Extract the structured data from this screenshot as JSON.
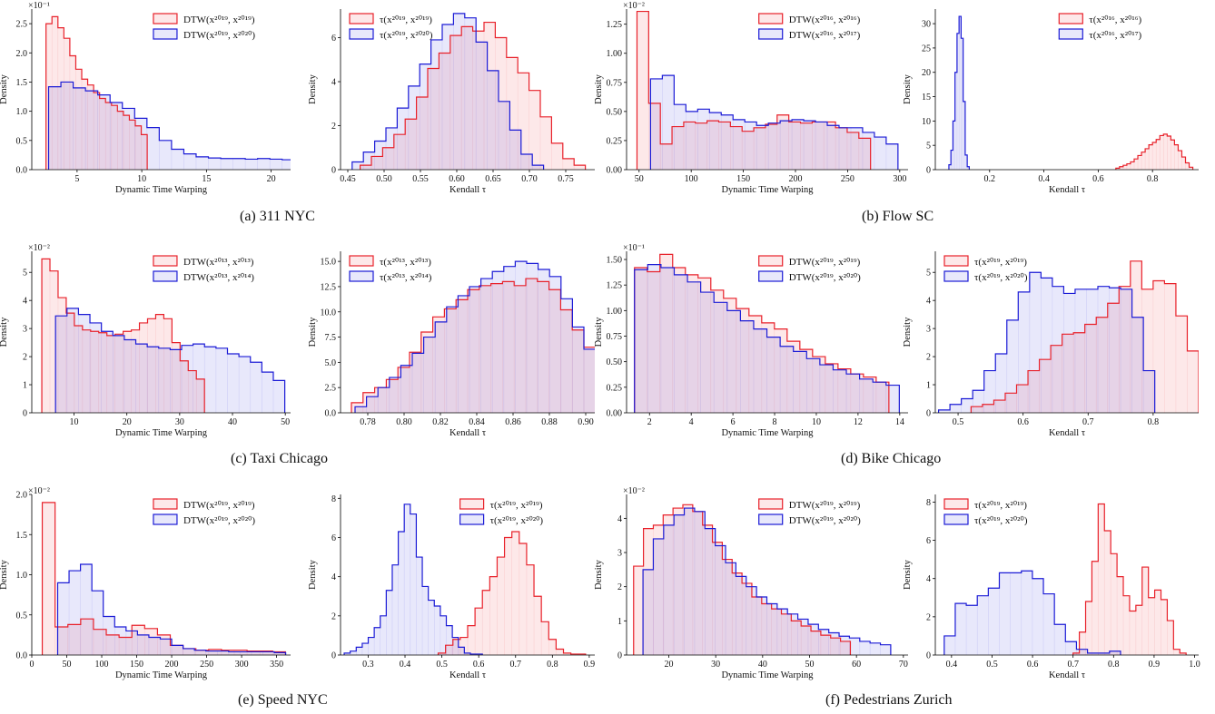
{
  "figure": {
    "captions": [
      {
        "label": "(a) 311 NYC"
      },
      {
        "label": "(b) Flow SC"
      },
      {
        "label": "(c) Taxi Chicago"
      },
      {
        "label": "(d) Bike Chicago"
      },
      {
        "label": "(e) Speed NYC"
      },
      {
        "label": "(f) Pedestrians Zurich"
      }
    ]
  },
  "colors": {
    "red": "#e8212a",
    "blue": "#1b1bd6",
    "red_fill": "#fbe3e8",
    "blue_fill": "#e6e6f8",
    "overlap_fill": "#e9d8ee"
  },
  "chart_data": [
    {
      "id": "311-dtw",
      "type": "histogram",
      "ylabel": "Density",
      "xlabel": "Dynamic Time Warping",
      "y_multiplier": "×10⁻¹",
      "xlim": [
        1.5,
        21.5
      ],
      "xticks": [
        5,
        10,
        15,
        20
      ],
      "ylim": [
        0,
        2.75
      ],
      "yticks": [
        0,
        0.5,
        1.0,
        1.5,
        2.0,
        2.5
      ],
      "legend_pos": "top-right",
      "series": [
        {
          "name": "DTW(x²⁰¹⁹, x²⁰¹⁹)",
          "color": "red",
          "start": 2.6,
          "width": 0.46,
          "values": [
            2.5,
            2.62,
            2.43,
            2.25,
            1.95,
            1.72,
            1.55,
            1.45,
            1.32,
            1.22,
            1.15,
            1.1,
            1.0,
            0.93,
            0.85,
            0.75,
            0.6
          ]
        },
        {
          "name": "DTW(x²⁰¹⁹, x²⁰²⁰)",
          "color": "blue",
          "start": 2.8,
          "width": 0.95,
          "values": [
            1.42,
            1.5,
            1.4,
            1.35,
            1.28,
            1.15,
            1.05,
            0.88,
            0.72,
            0.5,
            0.35,
            0.27,
            0.22,
            0.2,
            0.19,
            0.19,
            0.18,
            0.19,
            0.18,
            0.17
          ]
        }
      ]
    },
    {
      "id": "311-tau",
      "type": "histogram",
      "ylabel": "Density",
      "xlabel": "Kendall τ",
      "xlim": [
        0.44,
        0.79
      ],
      "xticks": [
        0.45,
        0.5,
        0.55,
        0.6,
        0.65,
        0.7,
        0.75
      ],
      "ylim": [
        0,
        7.3
      ],
      "yticks": [
        0,
        2,
        4,
        6
      ],
      "legend_pos": "top-left",
      "series": [
        {
          "name": "τ(x²⁰¹⁹, x²⁰¹⁹)",
          "color": "red",
          "start": 0.467,
          "width": 0.0155,
          "values": [
            0.2,
            0.6,
            1.0,
            1.6,
            2.3,
            3.3,
            4.6,
            5.3,
            6.1,
            6.5,
            6.3,
            6.7,
            6.0,
            5.1,
            4.4,
            3.6,
            2.4,
            1.2,
            0.5,
            0.2
          ]
        },
        {
          "name": "τ(x²⁰¹⁹, x²⁰²⁰)",
          "color": "blue",
          "start": 0.456,
          "width": 0.0155,
          "values": [
            0.35,
            0.8,
            1.3,
            1.9,
            2.8,
            3.8,
            4.8,
            5.9,
            6.6,
            7.1,
            6.9,
            5.8,
            4.5,
            3.1,
            1.8,
            0.7,
            0.2
          ]
        }
      ]
    },
    {
      "id": "flow-dtw",
      "type": "histogram",
      "ylabel": "Density",
      "xlabel": "Dynamic Time Warping",
      "y_multiplier": "×10⁻²",
      "xlim": [
        38,
        308
      ],
      "xticks": [
        50,
        100,
        150,
        200,
        250,
        300
      ],
      "ylim": [
        0,
        1.38
      ],
      "yticks": [
        0,
        0.25,
        0.5,
        0.75,
        1.0,
        1.25
      ],
      "legend_pos": "top-right",
      "series": [
        {
          "name": "DTW(x²⁰¹⁶, x²⁰¹⁶)",
          "color": "red",
          "start": 48,
          "width": 11.2,
          "values": [
            1.36,
            0.57,
            0.22,
            0.37,
            0.41,
            0.4,
            0.42,
            0.41,
            0.37,
            0.33,
            0.36,
            0.39,
            0.47,
            0.41,
            0.4,
            0.41,
            0.41,
            0.36,
            0.32,
            0.27
          ]
        },
        {
          "name": "DTW(x²⁰¹⁶, x²⁰¹⁷)",
          "color": "blue",
          "start": 61,
          "width": 11.3,
          "values": [
            0.78,
            0.81,
            0.56,
            0.5,
            0.52,
            0.49,
            0.47,
            0.43,
            0.41,
            0.38,
            0.4,
            0.42,
            0.43,
            0.42,
            0.41,
            0.38,
            0.36,
            0.36,
            0.32,
            0.28,
            0.22
          ]
        }
      ]
    },
    {
      "id": "flow-tau",
      "type": "histogram",
      "ylabel": "Density",
      "xlabel": "Kendall τ",
      "xlim": [
        0.0,
        0.97
      ],
      "xticks": [
        0.2,
        0.4,
        0.6,
        0.8
      ],
      "ylim": [
        0,
        33
      ],
      "yticks": [
        0,
        5,
        10,
        15,
        20,
        25,
        30
      ],
      "legend_pos": "top-right",
      "series": [
        {
          "name": "τ(x²⁰¹⁶, x²⁰¹⁶)",
          "color": "red",
          "start": 0.665,
          "width": 0.0135,
          "values": [
            0.3,
            0.6,
            0.9,
            1.2,
            1.6,
            2.2,
            2.9,
            3.6,
            4.3,
            5.1,
            5.6,
            6.2,
            7.0,
            7.3,
            6.9,
            6.1,
            5.1,
            3.9,
            2.6,
            1.4,
            0.5
          ]
        },
        {
          "name": "τ(x²⁰¹⁶, x²⁰¹⁷)",
          "color": "blue",
          "start": 0.05,
          "width": 0.0075,
          "values": [
            1.0,
            4.0,
            10.0,
            20.0,
            28.0,
            31.5,
            27.0,
            14.0,
            3.0,
            0.6
          ]
        }
      ]
    },
    {
      "id": "taxi-dtw",
      "type": "histogram",
      "ylabel": "Density",
      "xlabel": "Dynamic Time Warping",
      "y_multiplier": "×10⁻²",
      "xlim": [
        2,
        51
      ],
      "xticks": [
        10,
        20,
        30,
        40,
        50
      ],
      "ylim": [
        0,
        5.75
      ],
      "yticks": [
        0,
        1,
        2,
        3,
        4,
        5
      ],
      "legend_pos": "top-right",
      "series": [
        {
          "name": "DTW(x²⁰¹³, x²⁰¹³)",
          "color": "red",
          "start": 3.9,
          "width": 1.54,
          "values": [
            5.48,
            5.05,
            4.1,
            3.55,
            3.1,
            2.95,
            2.9,
            2.85,
            2.75,
            2.8,
            2.9,
            2.95,
            3.2,
            3.35,
            3.5,
            3.35,
            2.5,
            1.85,
            1.5,
            1.2
          ]
        },
        {
          "name": "DTW(x²⁰¹³, x²⁰¹⁴)",
          "color": "blue",
          "start": 6.5,
          "width": 2.17,
          "values": [
            3.45,
            3.72,
            3.5,
            3.2,
            2.9,
            2.75,
            2.6,
            2.45,
            2.35,
            2.3,
            2.25,
            2.4,
            2.45,
            2.35,
            2.3,
            2.1,
            2.0,
            1.8,
            1.45,
            1.15
          ]
        }
      ]
    },
    {
      "id": "taxi-tau",
      "type": "histogram",
      "ylabel": "Density",
      "xlabel": "Kendall τ",
      "xlim": [
        0.765,
        0.905
      ],
      "xticks": [
        0.78,
        0.8,
        0.82,
        0.84,
        0.86,
        0.88,
        0.9
      ],
      "ylim": [
        0,
        16
      ],
      "yticks": [
        0,
        2.5,
        5,
        7.5,
        10,
        12.5,
        15
      ],
      "legend_pos": "top-left",
      "series": [
        {
          "name": "τ(x²⁰¹³, x²⁰¹³)",
          "color": "red",
          "start": 0.771,
          "width": 0.0064,
          "values": [
            1.0,
            2.0,
            2.5,
            3.3,
            4.5,
            6.0,
            8.0,
            9.5,
            10.3,
            11.2,
            12.2,
            12.6,
            12.8,
            13.0,
            12.6,
            13.3,
            13.0,
            12.2,
            10.2,
            8.2,
            6.5,
            5.0,
            3.3,
            2.0
          ]
        },
        {
          "name": "τ(x²⁰¹³, x²⁰¹⁴)",
          "color": "blue",
          "start": 0.773,
          "width": 0.0063,
          "values": [
            0.6,
            1.6,
            2.5,
            3.5,
            4.7,
            5.9,
            7.5,
            9.0,
            10.5,
            11.6,
            12.5,
            13.3,
            14.0,
            14.5,
            15.0,
            14.8,
            14.2,
            13.5,
            11.3,
            8.5,
            6.3,
            4.5,
            2.8,
            1.5
          ]
        }
      ]
    },
    {
      "id": "bike-dtw",
      "type": "histogram",
      "ylabel": "Density",
      "xlabel": "Dynamic Time Warping",
      "y_multiplier": "×10⁻¹",
      "xlim": [
        0.9,
        14.4
      ],
      "xticks": [
        2,
        4,
        6,
        8,
        10,
        12,
        14
      ],
      "ylim": [
        0,
        1.58
      ],
      "yticks": [
        0,
        0.25,
        0.5,
        0.75,
        1.0,
        1.25,
        1.5
      ],
      "legend_pos": "top-right",
      "series": [
        {
          "name": "DTW(x²⁰¹⁹, x²⁰¹⁹)",
          "color": "red",
          "start": 1.28,
          "width": 0.61,
          "values": [
            1.42,
            1.38,
            1.55,
            1.42,
            1.35,
            1.32,
            1.2,
            1.12,
            1.02,
            0.95,
            0.88,
            0.82,
            0.7,
            0.62,
            0.55,
            0.48,
            0.43,
            0.38,
            0.35,
            0.3
          ]
        },
        {
          "name": "DTW(x²⁰¹⁹, x²⁰²⁰)",
          "color": "blue",
          "start": 1.28,
          "width": 0.635,
          "values": [
            1.4,
            1.45,
            1.42,
            1.35,
            1.28,
            1.18,
            1.08,
            1.0,
            0.9,
            0.82,
            0.74,
            0.65,
            0.6,
            0.53,
            0.47,
            0.42,
            0.38,
            0.33,
            0.3,
            0.27
          ]
        }
      ]
    },
    {
      "id": "bike-tau",
      "type": "histogram",
      "ylabel": "Density",
      "xlabel": "Kendall τ",
      "xlim": [
        0.465,
        0.87
      ],
      "xticks": [
        0.5,
        0.6,
        0.7,
        0.8
      ],
      "ylim": [
        0,
        5.75
      ],
      "yticks": [
        0,
        1,
        2,
        3,
        4,
        5
      ],
      "legend_pos": "top-left",
      "series": [
        {
          "name": "τ(x²⁰¹⁹, x²⁰¹⁹)",
          "color": "red",
          "start": 0.52,
          "width": 0.0175,
          "values": [
            0.22,
            0.3,
            0.45,
            0.7,
            1.0,
            1.5,
            1.9,
            2.4,
            2.8,
            2.85,
            3.15,
            3.4,
            3.9,
            4.5,
            5.4,
            4.4,
            4.7,
            4.6,
            3.45,
            2.2
          ]
        },
        {
          "name": "τ(x²⁰¹⁹, x²⁰²⁰)",
          "color": "blue",
          "start": 0.47,
          "width": 0.0175,
          "values": [
            0.1,
            0.3,
            0.5,
            0.8,
            1.5,
            2.1,
            3.3,
            4.3,
            5.0,
            4.8,
            4.5,
            4.25,
            4.4,
            4.4,
            4.5,
            4.45,
            4.4,
            3.4,
            1.5
          ]
        }
      ]
    },
    {
      "id": "speed-dtw",
      "type": "histogram",
      "ylabel": "Density",
      "xlabel": "Dynamic Time Warping",
      "y_multiplier": "×10⁻²",
      "xlim": [
        0,
        370
      ],
      "xticks": [
        0,
        50,
        100,
        150,
        200,
        250,
        300,
        350
      ],
      "ylim": [
        0,
        2.0
      ],
      "yticks": [
        0,
        0.5,
        1.0,
        1.5,
        2.0
      ],
      "legend_pos": "top-right",
      "series": [
        {
          "name": "DTW(x²⁰¹⁹, x²⁰¹⁹)",
          "color": "red",
          "start": 15,
          "width": 18.3,
          "values": [
            1.9,
            0.35,
            0.38,
            0.45,
            0.32,
            0.25,
            0.22,
            0.37,
            0.33,
            0.25,
            0.12,
            0.08,
            0.06,
            0.07,
            0.06,
            0.06,
            0.05,
            0.05,
            0.04
          ]
        },
        {
          "name": "DTW(x²⁰¹⁹, x²⁰²⁰)",
          "color": "blue",
          "start": 37,
          "width": 16.3,
          "values": [
            0.9,
            1.05,
            1.13,
            0.8,
            0.48,
            0.35,
            0.3,
            0.25,
            0.22,
            0.2,
            0.12,
            0.08,
            0.06,
            0.05,
            0.05,
            0.04,
            0.04,
            0.04,
            0.04,
            0.03
          ]
        }
      ]
    },
    {
      "id": "speed-tau",
      "type": "histogram",
      "ylabel": "Density",
      "xlabel": "Kendall τ",
      "xlim": [
        0.225,
        0.915
      ],
      "xticks": [
        0.3,
        0.4,
        0.5,
        0.6,
        0.7,
        0.8,
        0.9
      ],
      "ylim": [
        0,
        8.2
      ],
      "yticks": [
        0,
        2,
        4,
        6,
        8
      ],
      "legend_pos": "top-right",
      "series": [
        {
          "name": "τ(x²⁰¹⁹, x²⁰¹⁹)",
          "color": "red",
          "start": 0.49,
          "width": 0.02,
          "values": [
            0.1,
            0.5,
            0.8,
            0.9,
            1.5,
            2.4,
            3.3,
            4.0,
            5.0,
            6.0,
            6.3,
            5.7,
            4.6,
            3.0,
            1.7,
            0.8,
            0.3,
            0.1,
            0.05,
            0.05
          ]
        },
        {
          "name": "τ(x²⁰¹⁹, x²⁰²⁰)",
          "color": "blue",
          "start": 0.235,
          "width": 0.0163,
          "values": [
            0.1,
            0.2,
            0.4,
            0.6,
            0.9,
            1.4,
            2.0,
            3.3,
            4.6,
            6.3,
            7.7,
            7.2,
            5.0,
            3.5,
            2.8,
            2.5,
            2.0,
            1.5,
            0.9,
            0.4,
            0.1,
            0.05,
            0.05
          ]
        }
      ]
    },
    {
      "id": "ped-dtw",
      "type": "histogram",
      "ylabel": "Density",
      "xlabel": "Dynamic Time Warping",
      "y_multiplier": "×10⁻²",
      "xlim": [
        11,
        71
      ],
      "xticks": [
        20,
        30,
        40,
        50,
        60,
        70
      ],
      "ylim": [
        0,
        4.7
      ],
      "yticks": [
        0,
        1,
        2,
        3,
        4
      ],
      "legend_pos": "top-right",
      "series": [
        {
          "name": "DTW(x²⁰¹⁹, x²⁰¹⁹)",
          "color": "red",
          "start": 12.5,
          "width": 2.1,
          "values": [
            2.6,
            3.7,
            3.8,
            4.1,
            4.3,
            4.4,
            4.2,
            3.8,
            3.3,
            2.8,
            2.4,
            2.1,
            1.7,
            1.5,
            1.35,
            1.2,
            1.0,
            0.85,
            0.7,
            0.58,
            0.5,
            0.4
          ]
        },
        {
          "name": "DTW(x²⁰¹⁹, x²⁰²⁰)",
          "color": "blue",
          "start": 14.5,
          "width": 2.2,
          "values": [
            2.5,
            3.4,
            3.8,
            4.1,
            4.3,
            4.2,
            3.7,
            3.2,
            2.7,
            2.3,
            2.0,
            1.7,
            1.5,
            1.35,
            1.2,
            1.05,
            0.9,
            0.75,
            0.65,
            0.55,
            0.5,
            0.4,
            0.35,
            0.3
          ]
        }
      ]
    },
    {
      "id": "ped-tau",
      "type": "histogram",
      "ylabel": "Density",
      "xlabel": "Kendall τ",
      "xlim": [
        0.36,
        1.01
      ],
      "xticks": [
        0.4,
        0.5,
        0.6,
        0.7,
        0.8,
        0.9,
        1.0
      ],
      "ylim": [
        0,
        8.4
      ],
      "yticks": [
        0,
        2,
        4,
        6,
        8
      ],
      "legend_pos": "top-left",
      "series": [
        {
          "name": "τ(x²⁰¹⁹, x²⁰¹⁹)",
          "color": "red",
          "start": 0.7,
          "width": 0.0155,
          "values": [
            0.1,
            1.2,
            2.8,
            4.9,
            7.9,
            6.5,
            5.3,
            4.1,
            3.1,
            2.3,
            2.6,
            4.6,
            3.0,
            3.4,
            2.9,
            1.8,
            0.3,
            0.1
          ]
        },
        {
          "name": "τ(x²⁰¹⁹, x²⁰²⁰)",
          "color": "blue",
          "start": 0.382,
          "width": 0.0272,
          "values": [
            1.0,
            2.7,
            2.6,
            3.1,
            3.5,
            4.3,
            4.3,
            4.4,
            4.0,
            3.2,
            1.6,
            0.7,
            0.3,
            0.1,
            0.1,
            0.2
          ]
        }
      ]
    }
  ]
}
